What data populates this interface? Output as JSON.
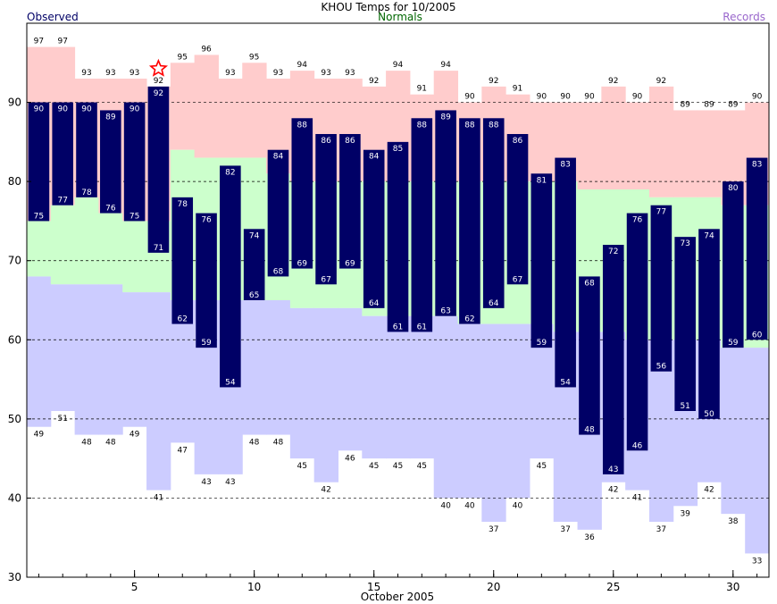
{
  "header": {
    "title": "KHOU Temps for 10/2005",
    "observed_label": "Observed",
    "normals_label": "Normals",
    "records_label": "Records"
  },
  "colors": {
    "observed": "#000066",
    "record_high_band": "#ffcccc",
    "normal_band": "#ccffcc",
    "record_low_band": "#ccccff",
    "normals_text": "#006600",
    "records_text": "#9966cc",
    "record_star": "#ff0000"
  },
  "chart_data": {
    "type": "bar",
    "title": "KHOU Temps for 10/2005",
    "xlabel": "October 2005",
    "ylabel": "",
    "ylim": [
      30,
      100
    ],
    "yticks": [
      30,
      40,
      50,
      60,
      70,
      80,
      90
    ],
    "xticks": [
      5,
      10,
      15,
      20,
      25,
      30
    ],
    "grid": "horizontal dashed at 40, 50, 60, 70, 80, 90",
    "days": [
      1,
      2,
      3,
      4,
      5,
      6,
      7,
      8,
      9,
      10,
      11,
      12,
      13,
      14,
      15,
      16,
      17,
      18,
      19,
      20,
      21,
      22,
      23,
      24,
      25,
      26,
      27,
      28,
      29,
      30,
      31
    ],
    "observed_high": [
      90,
      90,
      90,
      89,
      90,
      92,
      78,
      76,
      82,
      74,
      84,
      88,
      86,
      86,
      84,
      85,
      88,
      89,
      88,
      88,
      86,
      81,
      83,
      68,
      72,
      76,
      77,
      73,
      74,
      80,
      83
    ],
    "observed_low": [
      75,
      77,
      78,
      76,
      75,
      71,
      62,
      59,
      54,
      65,
      68,
      69,
      67,
      69,
      64,
      61,
      61,
      63,
      62,
      64,
      67,
      59,
      54,
      48,
      43,
      46,
      56,
      51,
      50,
      59,
      60
    ],
    "normal_high": [
      75,
      77,
      78,
      76,
      75,
      75,
      84,
      83,
      83,
      83,
      81,
      80,
      80,
      80,
      80,
      80,
      80,
      80,
      80,
      80,
      80,
      80,
      80,
      79,
      79,
      79,
      78,
      78,
      78,
      77,
      77
    ],
    "normal_low": [
      68,
      67,
      67,
      67,
      66,
      66,
      65,
      65,
      65,
      65,
      65,
      64,
      64,
      64,
      63,
      63,
      63,
      63,
      62,
      62,
      62,
      62,
      61,
      61,
      61,
      60,
      60,
      60,
      60,
      59,
      59
    ],
    "record_high": [
      97,
      97,
      93,
      93,
      93,
      92,
      95,
      96,
      93,
      95,
      93,
      94,
      93,
      93,
      92,
      94,
      91,
      94,
      90,
      92,
      91,
      90,
      90,
      90,
      92,
      90,
      92,
      89,
      89,
      89,
      90
    ],
    "record_low": [
      49,
      51,
      48,
      48,
      49,
      41,
      47,
      43,
      43,
      48,
      48,
      45,
      42,
      46,
      45,
      45,
      45,
      40,
      40,
      37,
      40,
      45,
      37,
      36,
      42,
      41,
      37,
      39,
      42,
      38,
      33
    ],
    "record_high_set_days": [
      6
    ]
  }
}
